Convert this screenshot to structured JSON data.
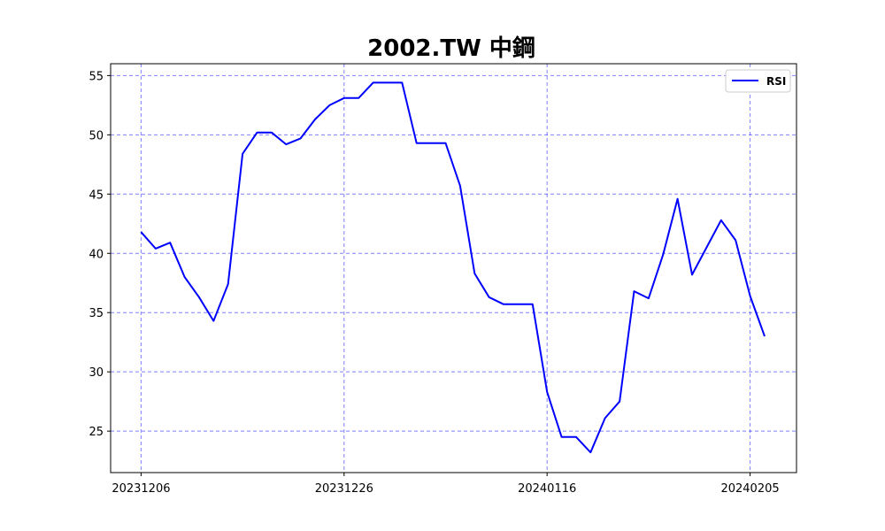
{
  "chart_data": {
    "type": "line",
    "title": "2002.TW 中鋼",
    "xlabel": "",
    "ylabel": "",
    "x_ticks": [
      {
        "label": "20231206",
        "index": 0
      },
      {
        "label": "20231226",
        "index": 14
      },
      {
        "label": "20240116",
        "index": 28
      },
      {
        "label": "20240205",
        "index": 42
      }
    ],
    "x_range": [
      -2.1,
      45.2
    ],
    "ylim": [
      21.5,
      56.0
    ],
    "y_ticks": [
      25,
      30,
      35,
      40,
      45,
      50,
      55
    ],
    "grid": true,
    "legend_position": "upper-right",
    "series": [
      {
        "name": "RSI",
        "color": "#0000ff",
        "values": [
          41.8,
          40.4,
          40.9,
          38.0,
          36.3,
          34.3,
          37.4,
          48.4,
          50.2,
          50.2,
          49.2,
          49.7,
          51.3,
          52.5,
          53.1,
          53.1,
          54.4,
          54.4,
          54.4,
          49.3,
          49.3,
          49.3,
          45.7,
          38.3,
          36.3,
          35.7,
          35.7,
          35.7,
          28.3,
          24.5,
          24.5,
          23.2,
          26.1,
          27.5,
          36.8,
          36.2,
          39.9,
          44.6,
          38.2,
          40.5,
          42.8,
          41.1,
          36.4,
          33.0
        ]
      }
    ]
  }
}
